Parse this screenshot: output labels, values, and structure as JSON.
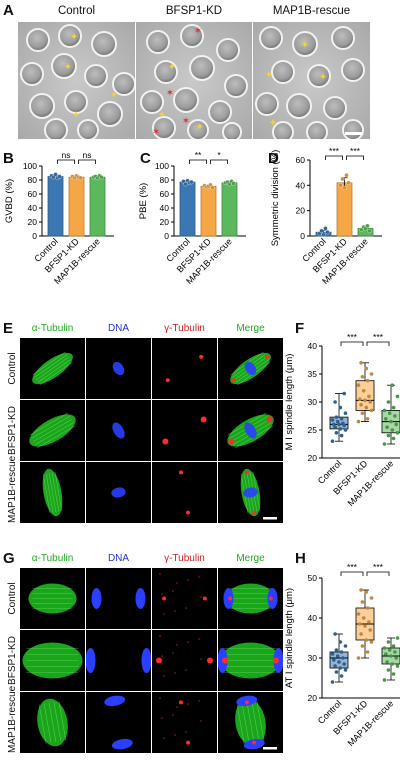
{
  "panels": {
    "A": {
      "letter": "A",
      "headers": [
        "Control",
        "BFSP1-KD",
        "MAP1B-rescue"
      ]
    },
    "E": {
      "letter": "E",
      "col_headers": [
        "α-Tubulin",
        "DNA",
        "γ-Tubulin",
        "Merge"
      ],
      "col_colors": [
        "#22aa22",
        "#2233cc",
        "#cc2222",
        "#22aa22"
      ],
      "row_labels": [
        "Control",
        "BFSP1-KD",
        "MAP1B-rescue"
      ]
    },
    "G": {
      "letter": "G",
      "col_headers": [
        "α-Tubulin",
        "DNA",
        "γ-Tubulin",
        "Merge"
      ],
      "col_colors": [
        "#22aa22",
        "#2233cc",
        "#cc2222",
        "#22aa22"
      ],
      "row_labels": [
        "Control",
        "BFSP1-KD",
        "MAP1B-rescue"
      ]
    }
  },
  "colors": {
    "control": "#3b78b3",
    "kd": "#f5a745",
    "rescue": "#5cb85c"
  },
  "chart_data": [
    {
      "panel": "B",
      "type": "bar",
      "ylabel": "GVBD (%)",
      "categories": [
        "Control",
        "BFSP1-KD",
        "MAP1B-rescue"
      ],
      "values": [
        85,
        84,
        84
      ],
      "errors": [
        2,
        1.5,
        1.5
      ],
      "points": [
        [
          86,
          84,
          88,
          83,
          85
        ],
        [
          85,
          83,
          86,
          84,
          83
        ],
        [
          84,
          85,
          83,
          86,
          84
        ]
      ],
      "ylim": [
        0,
        100
      ],
      "yticks": [
        0,
        20,
        40,
        60,
        80,
        100
      ],
      "significance": [
        {
          "from": 0,
          "to": 1,
          "label": "ns"
        },
        {
          "from": 1,
          "to": 2,
          "label": "ns"
        }
      ]
    },
    {
      "panel": "C",
      "type": "bar",
      "ylabel": "PBE (%)",
      "categories": [
        "Control",
        "BFSP1-KD",
        "MAP1B-rescue"
      ],
      "values": [
        77,
        71,
        76
      ],
      "errors": [
        2,
        1.5,
        2
      ],
      "points": [
        [
          78,
          74,
          79,
          76,
          77
        ],
        [
          72,
          70,
          71,
          73,
          69
        ],
        [
          76,
          77,
          74,
          78,
          75
        ]
      ],
      "ylim": [
        0,
        100
      ],
      "yticks": [
        0,
        20,
        40,
        60,
        80,
        100
      ],
      "significance": [
        {
          "from": 0,
          "to": 1,
          "label": "**"
        },
        {
          "from": 1,
          "to": 2,
          "label": "*"
        }
      ]
    },
    {
      "panel": "D",
      "type": "bar",
      "ylabel": "Symmetric division (%)",
      "categories": [
        "Control",
        "BFSP1-KD",
        "MAP1B-rescue"
      ],
      "values": [
        3,
        42,
        6
      ],
      "errors": [
        1.5,
        4,
        1.5
      ],
      "points": [
        [
          2,
          4,
          1,
          6,
          3
        ],
        [
          40,
          45,
          38,
          48,
          42
        ],
        [
          5,
          7,
          6,
          8,
          4
        ]
      ],
      "ylim": [
        0,
        60
      ],
      "yticks": [
        0,
        20,
        40,
        60
      ],
      "significance": [
        {
          "from": 0,
          "to": 1,
          "label": "***"
        },
        {
          "from": 1,
          "to": 2,
          "label": "***"
        }
      ]
    },
    {
      "panel": "F",
      "type": "box",
      "ylabel": "M I spindle length (μm)",
      "categories": [
        "Control",
        "BFSP1-KD",
        "MAP1B-rescue"
      ],
      "box": [
        {
          "min": 23,
          "q1": 25.2,
          "median": 26,
          "q3": 27.3,
          "max": 31.5
        },
        {
          "min": 26.5,
          "q1": 28.5,
          "median": 30.3,
          "q3": 33.8,
          "max": 37
        },
        {
          "min": 22.5,
          "q1": 24.5,
          "median": 26.5,
          "q3": 28.5,
          "max": 33
        }
      ],
      "points": [
        [
          23,
          24,
          24.5,
          25,
          25.2,
          25.5,
          25.8,
          26,
          26,
          26.2,
          26.5,
          26.8,
          27,
          27.3,
          28,
          29,
          30,
          31.5
        ],
        [
          26.5,
          27,
          28,
          28.5,
          29,
          29.5,
          30,
          30.3,
          30.5,
          31,
          32,
          33,
          33.8,
          34.5,
          35,
          36,
          37
        ],
        [
          22.5,
          23.5,
          24,
          24.5,
          25,
          25.5,
          26,
          26.5,
          27,
          27.5,
          28,
          28.5,
          29,
          30,
          31,
          33
        ]
      ],
      "ylim": [
        20,
        40
      ],
      "yticks": [
        20,
        25,
        30,
        35,
        40
      ],
      "significance": [
        {
          "from": 0,
          "to": 1,
          "label": "***"
        },
        {
          "from": 1,
          "to": 2,
          "label": "***"
        }
      ]
    },
    {
      "panel": "H",
      "type": "box",
      "ylabel": "AT I spindle length (μm)",
      "categories": [
        "Control",
        "BFSP1-KD",
        "MAP1B-rescue"
      ],
      "box": [
        {
          "min": 24,
          "q1": 27.5,
          "median": 30,
          "q3": 31.5,
          "max": 36
        },
        {
          "min": 30,
          "q1": 34.5,
          "median": 38.5,
          "q3": 42.5,
          "max": 47
        },
        {
          "min": 24.5,
          "q1": 28.5,
          "median": 30.5,
          "q3": 32.5,
          "max": 35
        }
      ],
      "points": [
        [
          24,
          25.5,
          26.5,
          27,
          27.5,
          28,
          28.5,
          29,
          29.5,
          30,
          30.5,
          31,
          31.5,
          32,
          33,
          34,
          36
        ],
        [
          30,
          31.5,
          33,
          34,
          34.5,
          36,
          37,
          38,
          38.5,
          39,
          40,
          41,
          42.5,
          44,
          45,
          46.5,
          47
        ],
        [
          24.5,
          26,
          27,
          28,
          28.5,
          29,
          30,
          30.5,
          31,
          31.5,
          32,
          32.5,
          33,
          34,
          35
        ]
      ],
      "ylim": [
        20,
        50
      ],
      "yticks": [
        20,
        30,
        40,
        50
      ],
      "significance": [
        {
          "from": 0,
          "to": 1,
          "label": "***"
        },
        {
          "from": 1,
          "to": 2,
          "label": "***"
        }
      ]
    }
  ]
}
